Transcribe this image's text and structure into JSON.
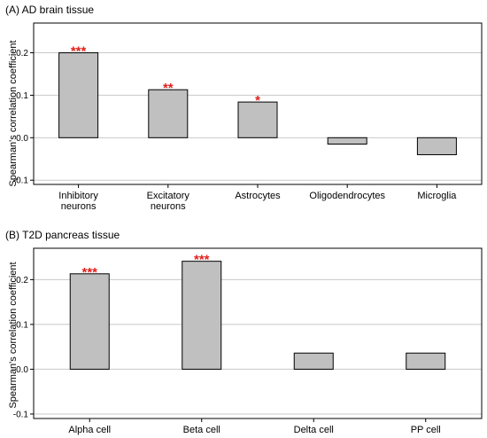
{
  "chart_data": [
    {
      "type": "bar",
      "title": "(A) AD brain tissue",
      "ylabel": "Spearman's correlation coefficient",
      "xlabel": "",
      "categories": [
        [
          "Inhibitory",
          "neurons"
        ],
        [
          "Excitatory",
          "neurons"
        ],
        [
          "Astrocytes"
        ],
        [
          "Oligodendrocytes"
        ],
        [
          "Microglia"
        ]
      ],
      "values": [
        0.2,
        0.113,
        0.084,
        -0.015,
        -0.04
      ],
      "significance": [
        "***",
        "**",
        "*",
        "",
        ""
      ],
      "ylim": [
        -0.11,
        0.27
      ],
      "yticks": [
        -0.1,
        0.0,
        0.1,
        0.2
      ],
      "ytick_labels": [
        "-0.1",
        "0.0",
        "0.1",
        "0.2"
      ],
      "grid": true,
      "bar_color": "#c0c0c0",
      "significance_color": "#e0201c"
    },
    {
      "type": "bar",
      "title": "(B) T2D pancreas tissue",
      "ylabel": "Spearman's correlation coefficient",
      "xlabel": "",
      "categories": [
        [
          "Alpha cell"
        ],
        [
          "Beta cell"
        ],
        [
          "Delta cell"
        ],
        [
          "PP cell"
        ]
      ],
      "values": [
        0.213,
        0.241,
        0.036,
        0.036
      ],
      "significance": [
        "***",
        "***",
        "",
        ""
      ],
      "ylim": [
        -0.11,
        0.27
      ],
      "yticks": [
        -0.1,
        0.0,
        0.1,
        0.2
      ],
      "ytick_labels": [
        "-0.1",
        "0.0",
        "0.1",
        "0.2"
      ],
      "grid": true,
      "bar_color": "#c0c0c0",
      "significance_color": "#e0201c"
    }
  ]
}
